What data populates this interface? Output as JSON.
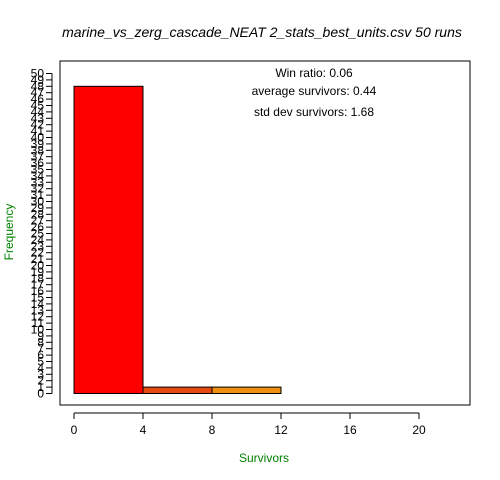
{
  "chart_data": {
    "type": "bar",
    "title": "marine_vs_zerg_cascade_NEAT 2_stats_best_units.csv 50 runs",
    "xlabel": "Survivors",
    "ylabel": "Frequency",
    "xlim": [
      -1.5,
      21.5
    ],
    "ylim": [
      0,
      50
    ],
    "x_ticks": [
      0,
      4,
      8,
      12,
      16,
      20
    ],
    "y_ticks": [
      0,
      1,
      2,
      3,
      4,
      5,
      6,
      7,
      8,
      9,
      10,
      11,
      12,
      13,
      14,
      15,
      16,
      17,
      18,
      19,
      20,
      21,
      22,
      23,
      24,
      25,
      26,
      27,
      28,
      29,
      30,
      31,
      32,
      33,
      34,
      35,
      36,
      37,
      38,
      39,
      40,
      41,
      42,
      43,
      44,
      45,
      46,
      47,
      48,
      49,
      50
    ],
    "bins": [
      {
        "from": 0,
        "to": 4,
        "count": 48,
        "color": "#ff0000"
      },
      {
        "from": 4,
        "to": 8,
        "count": 1,
        "color": "#e64a10"
      },
      {
        "from": 8,
        "to": 12,
        "count": 1,
        "color": "#f09010"
      },
      {
        "from": 12,
        "to": 16,
        "count": 0,
        "color": "#f4c020"
      },
      {
        "from": 16,
        "to": 20,
        "count": 0,
        "color": "#f8ee30"
      }
    ],
    "annotations": [
      "Win ratio: 0.06",
      "average survivors: 0.44",
      "std dev survivors: 1.68"
    ],
    "axis_title_color": "#008000",
    "grid": false,
    "legend": "none"
  }
}
